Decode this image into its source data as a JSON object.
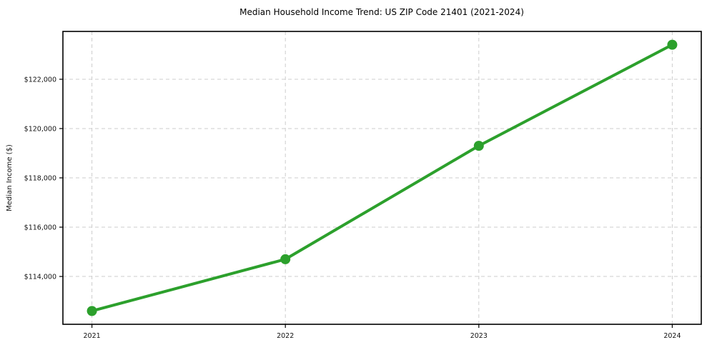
{
  "chart_data": {
    "type": "line",
    "title": "Median Household Income Trend: US ZIP Code 21401 (2021-2024)",
    "xlabel": "",
    "ylabel": "Median Income ($)",
    "x": [
      2021,
      2022,
      2023,
      2024
    ],
    "x_tick_labels": [
      "2021",
      "2022",
      "2023",
      "2024"
    ],
    "series": [
      {
        "name": "Median Household Income",
        "values": [
          112600,
          114700,
          119300,
          123400
        ],
        "color": "#2ca02c"
      }
    ],
    "y_ticks": [
      {
        "value": 114000,
        "label": "$114,000"
      },
      {
        "value": 116000,
        "label": "$116,000"
      },
      {
        "value": 118000,
        "label": "$118,000"
      },
      {
        "value": 120000,
        "label": "$120,000"
      },
      {
        "value": 122000,
        "label": "$122,000"
      }
    ],
    "xlim": [
      2020.85,
      2024.15
    ],
    "ylim": [
      112060,
      123940
    ],
    "grid": {
      "visible": true,
      "style": "dashed",
      "color": "#cdcdcd"
    },
    "legend": {
      "visible": false
    },
    "colors": {
      "line": "#2ca02c",
      "marker": "#2ca02c",
      "spine": "#000000",
      "grid": "#cdcdcd",
      "background": "#ffffff"
    }
  }
}
